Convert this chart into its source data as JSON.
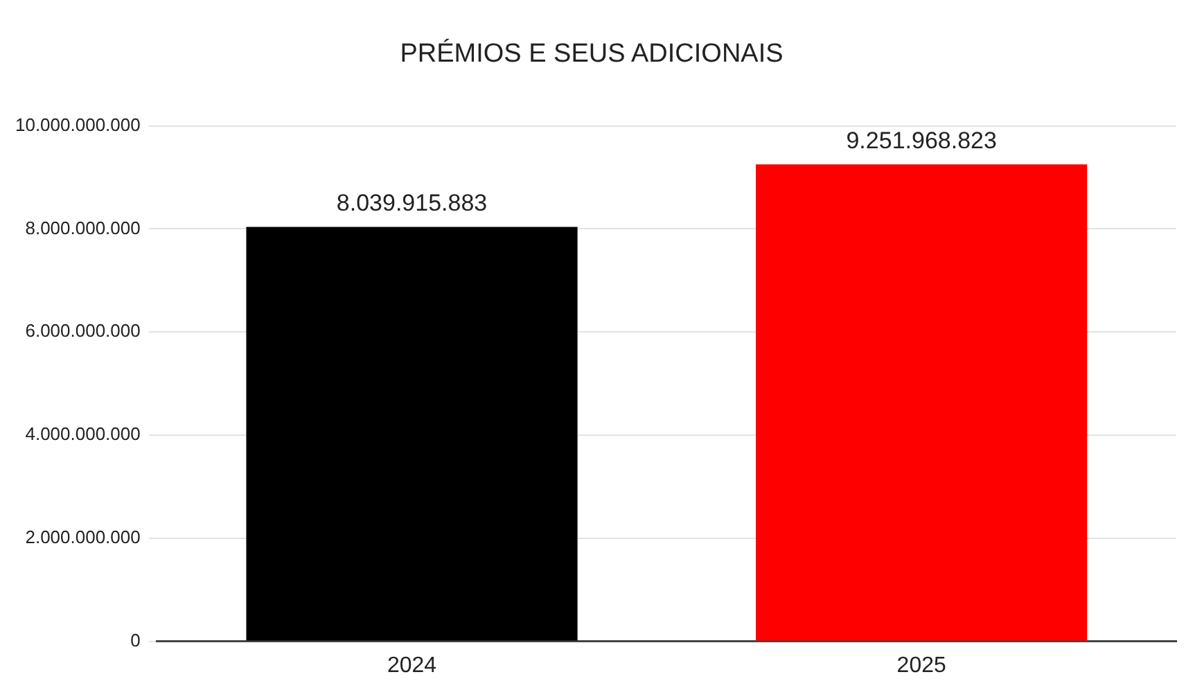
{
  "chart_data": {
    "type": "bar",
    "title": "PRÉMIOS E SEUS ADICIONAIS",
    "categories": [
      "2024",
      "2025"
    ],
    "values": [
      8039915883,
      9251968823
    ],
    "colors": [
      "#000000",
      "#ff0000"
    ],
    "value_labels": [
      "8.039.915.883",
      "9.251.968.823"
    ],
    "ylim": [
      0,
      10000000000
    ],
    "yticks": [
      {
        "value": 0,
        "label": "0"
      },
      {
        "value": 2000000000,
        "label": "2.000.000.000"
      },
      {
        "value": 4000000000,
        "label": "4.000.000.000"
      },
      {
        "value": 6000000000,
        "label": "6.000.000.000"
      },
      {
        "value": 8000000000,
        "label": "8.000.000.000"
      },
      {
        "value": 10000000000,
        "label": "10.000.000.000"
      }
    ],
    "grid": "y",
    "legend": false
  }
}
